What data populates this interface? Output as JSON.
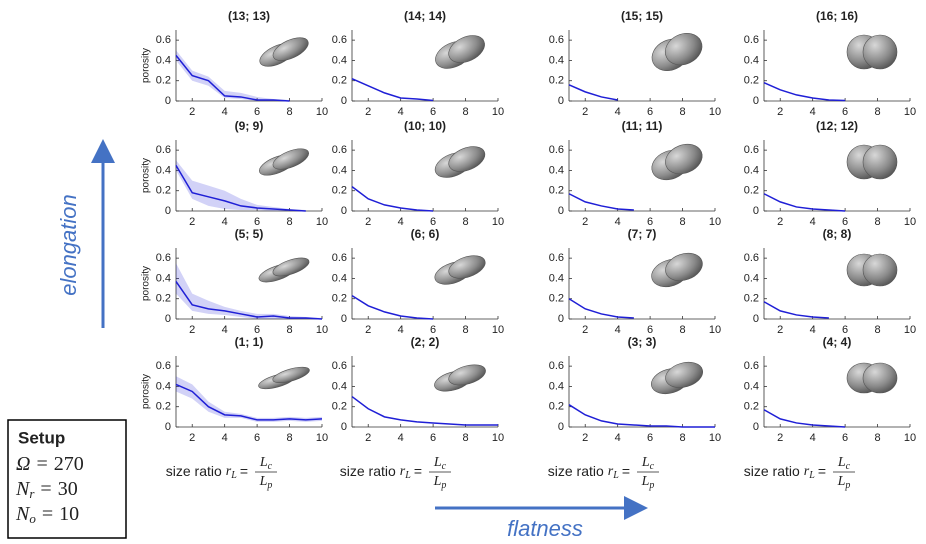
{
  "chart_data": [
    {
      "type": "line",
      "title": "(13; 13)",
      "ylabel": "porosity",
      "xlim": [
        1,
        10
      ],
      "ylim": [
        0,
        0.7
      ],
      "xticks": [
        2,
        4,
        6,
        8,
        10
      ],
      "yticks": [
        0,
        0.2,
        0.4,
        0.6
      ],
      "series": [
        {
          "color": "#1f1fd6",
          "x": [
            1,
            2,
            3,
            4,
            5,
            6,
            7,
            8
          ],
          "values": [
            0.45,
            0.25,
            0.2,
            0.05,
            0.04,
            0.01,
            0.01,
            0
          ],
          "band": {
            "lower": [
              0.4,
              0.2,
              0.15,
              0.03,
              0.02,
              0,
              0,
              0
            ],
            "upper": [
              0.5,
              0.3,
              0.24,
              0.1,
              0.08,
              0.04,
              0.02,
              0.01
            ]
          }
        }
      ]
    },
    {
      "type": "line",
      "title": "(14; 14)",
      "xlim": [
        1,
        10
      ],
      "ylim": [
        0,
        0.7
      ],
      "xticks": [
        2,
        4,
        6,
        8,
        10
      ],
      "yticks": [
        0,
        0.2,
        0.4,
        0.6
      ],
      "series": [
        {
          "color": "#1f1fd6",
          "x": [
            1,
            2,
            3,
            4,
            5,
            6
          ],
          "values": [
            0.22,
            0.15,
            0.08,
            0.03,
            0.02,
            0.005
          ]
        }
      ]
    },
    {
      "type": "line",
      "title": "(15; 15)",
      "xlim": [
        1,
        10
      ],
      "ylim": [
        0,
        0.7
      ],
      "xticks": [
        2,
        4,
        6,
        8,
        10
      ],
      "yticks": [
        0,
        0.2,
        0.4,
        0.6
      ],
      "series": [
        {
          "color": "#1f1fd6",
          "x": [
            1,
            2,
            3,
            4
          ],
          "values": [
            0.16,
            0.09,
            0.04,
            0.01
          ]
        }
      ]
    },
    {
      "type": "line",
      "title": "(16; 16)",
      "xlim": [
        1,
        10
      ],
      "ylim": [
        0,
        0.7
      ],
      "xticks": [
        2,
        4,
        6,
        8,
        10
      ],
      "yticks": [
        0,
        0.2,
        0.4,
        0.6
      ],
      "series": [
        {
          "color": "#1f1fd6",
          "x": [
            1,
            2,
            3,
            4,
            5,
            6
          ],
          "values": [
            0.18,
            0.11,
            0.06,
            0.03,
            0.01,
            0.005
          ]
        }
      ]
    },
    {
      "type": "line",
      "title": "(9; 9)",
      "ylabel": "porosity",
      "xlim": [
        1,
        10
      ],
      "ylim": [
        0,
        0.7
      ],
      "xticks": [
        2,
        4,
        6,
        8,
        10
      ],
      "yticks": [
        0,
        0.2,
        0.4,
        0.6
      ],
      "series": [
        {
          "color": "#1f1fd6",
          "x": [
            1,
            2,
            3,
            4,
            5,
            6,
            7,
            8,
            9
          ],
          "values": [
            0.45,
            0.18,
            0.14,
            0.1,
            0.05,
            0.03,
            0.02,
            0.01,
            0
          ],
          "band": {
            "lower": [
              0.4,
              0.12,
              0.05,
              0.02,
              0.01,
              0.01,
              0,
              0,
              0
            ],
            "upper": [
              0.5,
              0.3,
              0.25,
              0.2,
              0.12,
              0.06,
              0.04,
              0.02,
              0.01
            ]
          }
        }
      ]
    },
    {
      "type": "line",
      "title": "(10; 10)",
      "xlim": [
        1,
        10
      ],
      "ylim": [
        0,
        0.7
      ],
      "xticks": [
        2,
        4,
        6,
        8,
        10
      ],
      "yticks": [
        0,
        0.2,
        0.4,
        0.6
      ],
      "series": [
        {
          "color": "#1f1fd6",
          "x": [
            1,
            2,
            3,
            4,
            5,
            6
          ],
          "values": [
            0.24,
            0.12,
            0.06,
            0.03,
            0.01,
            0
          ]
        }
      ]
    },
    {
      "type": "line",
      "title": "(11; 11)",
      "xlim": [
        1,
        10
      ],
      "ylim": [
        0,
        0.7
      ],
      "xticks": [
        2,
        4,
        6,
        8,
        10
      ],
      "yticks": [
        0,
        0.2,
        0.4,
        0.6
      ],
      "series": [
        {
          "color": "#1f1fd6",
          "x": [
            1,
            2,
            3,
            4,
            5
          ],
          "values": [
            0.17,
            0.09,
            0.05,
            0.02,
            0.01
          ]
        }
      ]
    },
    {
      "type": "line",
      "title": "(12; 12)",
      "xlim": [
        1,
        10
      ],
      "ylim": [
        0,
        0.7
      ],
      "xticks": [
        2,
        4,
        6,
        8,
        10
      ],
      "yticks": [
        0,
        0.2,
        0.4,
        0.6
      ],
      "series": [
        {
          "color": "#1f1fd6",
          "x": [
            1,
            2,
            3,
            4,
            5,
            6
          ],
          "values": [
            0.17,
            0.09,
            0.04,
            0.02,
            0.01,
            0
          ]
        }
      ]
    },
    {
      "type": "line",
      "title": "(5; 5)",
      "ylabel": "porosity",
      "xlim": [
        1,
        10
      ],
      "ylim": [
        0,
        0.7
      ],
      "xticks": [
        2,
        4,
        6,
        8,
        10
      ],
      "yticks": [
        0,
        0.2,
        0.4,
        0.6
      ],
      "series": [
        {
          "color": "#1f1fd6",
          "x": [
            1,
            2,
            3,
            4,
            5,
            6,
            7,
            8,
            9,
            10
          ],
          "values": [
            0.37,
            0.14,
            0.1,
            0.08,
            0.05,
            0.02,
            0.03,
            0.01,
            0.01,
            0
          ],
          "band": {
            "lower": [
              0.25,
              0.08,
              0.05,
              0.04,
              0.02,
              0,
              0,
              0,
              0,
              0
            ],
            "upper": [
              0.55,
              0.25,
              0.18,
              0.12,
              0.08,
              0.05,
              0.05,
              0.03,
              0.02,
              0.01
            ]
          }
        }
      ]
    },
    {
      "type": "line",
      "title": "(6; 6)",
      "xlim": [
        1,
        10
      ],
      "ylim": [
        0,
        0.7
      ],
      "xticks": [
        2,
        4,
        6,
        8,
        10
      ],
      "yticks": [
        0,
        0.2,
        0.4,
        0.6
      ],
      "series": [
        {
          "color": "#1f1fd6",
          "x": [
            1,
            2,
            3,
            4,
            5,
            6
          ],
          "values": [
            0.23,
            0.13,
            0.07,
            0.03,
            0.01,
            0
          ]
        }
      ]
    },
    {
      "type": "line",
      "title": "(7; 7)",
      "xlim": [
        1,
        10
      ],
      "ylim": [
        0,
        0.7
      ],
      "xticks": [
        2,
        4,
        6,
        8,
        10
      ],
      "yticks": [
        0,
        0.2,
        0.4,
        0.6
      ],
      "series": [
        {
          "color": "#1f1fd6",
          "x": [
            1,
            2,
            3,
            4,
            5
          ],
          "values": [
            0.2,
            0.1,
            0.05,
            0.02,
            0.01
          ]
        }
      ]
    },
    {
      "type": "line",
      "title": "(8; 8)",
      "xlim": [
        1,
        10
      ],
      "ylim": [
        0,
        0.7
      ],
      "xticks": [
        2,
        4,
        6,
        8,
        10
      ],
      "yticks": [
        0,
        0.2,
        0.4,
        0.6
      ],
      "series": [
        {
          "color": "#1f1fd6",
          "x": [
            1,
            2,
            3,
            4,
            5
          ],
          "values": [
            0.17,
            0.08,
            0.04,
            0.02,
            0.01
          ]
        }
      ]
    },
    {
      "type": "line",
      "title": "(1; 1)",
      "ylabel": "porosity",
      "xlim": [
        1,
        10
      ],
      "ylim": [
        0,
        0.7
      ],
      "xticks": [
        2,
        4,
        6,
        8,
        10
      ],
      "yticks": [
        0,
        0.2,
        0.4,
        0.6
      ],
      "series": [
        {
          "color": "#1f1fd6",
          "x": [
            1,
            2,
            3,
            4,
            5,
            6,
            7,
            8,
            9,
            10
          ],
          "values": [
            0.42,
            0.35,
            0.2,
            0.12,
            0.11,
            0.07,
            0.07,
            0.08,
            0.07,
            0.08
          ],
          "band": {
            "lower": [
              0.35,
              0.28,
              0.15,
              0.09,
              0.09,
              0.05,
              0.05,
              0.06,
              0.05,
              0.06
            ],
            "upper": [
              0.5,
              0.42,
              0.25,
              0.15,
              0.13,
              0.09,
              0.09,
              0.1,
              0.09,
              0.1
            ]
          }
        }
      ]
    },
    {
      "type": "line",
      "title": "(2; 2)",
      "xlim": [
        1,
        10
      ],
      "ylim": [
        0,
        0.7
      ],
      "xticks": [
        2,
        4,
        6,
        8,
        10
      ],
      "yticks": [
        0,
        0.2,
        0.4,
        0.6
      ],
      "series": [
        {
          "color": "#1f1fd6",
          "x": [
            1,
            2,
            3,
            4,
            5,
            6,
            7,
            8,
            9,
            10
          ],
          "values": [
            0.3,
            0.18,
            0.1,
            0.07,
            0.05,
            0.04,
            0.03,
            0.02,
            0.02,
            0.02
          ]
        }
      ]
    },
    {
      "type": "line",
      "title": "(3; 3)",
      "xlim": [
        1,
        10
      ],
      "ylim": [
        0,
        0.7
      ],
      "xticks": [
        2,
        4,
        6,
        8,
        10
      ],
      "yticks": [
        0,
        0.2,
        0.4,
        0.6
      ],
      "series": [
        {
          "color": "#1f1fd6",
          "x": [
            1,
            2,
            3,
            4,
            5,
            6,
            7,
            8,
            9,
            10
          ],
          "values": [
            0.22,
            0.12,
            0.06,
            0.03,
            0.02,
            0.01,
            0.01,
            0,
            0,
            0
          ]
        }
      ]
    },
    {
      "type": "line",
      "title": "(4; 4)",
      "xlim": [
        1,
        10
      ],
      "ylim": [
        0,
        0.7
      ],
      "xticks": [
        2,
        4,
        6,
        8,
        10
      ],
      "yticks": [
        0,
        0.2,
        0.4,
        0.6
      ],
      "series": [
        {
          "color": "#1f1fd6",
          "x": [
            1,
            2,
            3,
            4,
            5,
            6
          ],
          "values": [
            0.17,
            0.08,
            0.04,
            0.02,
            0.01,
            0
          ]
        }
      ]
    }
  ],
  "xlabel": {
    "text": "size ratio",
    "var": "r",
    "var_sub": "L",
    "eq": "=",
    "num": "L",
    "num_sub": "c",
    "den": "L",
    "den_sub": "p"
  },
  "arrows": {
    "vertical": "elongation",
    "horizontal": "flatness"
  },
  "setup": {
    "title": "Setup",
    "lines": [
      {
        "sym": "Ω",
        "eq": "=",
        "value": 270
      },
      {
        "sym": "N",
        "sub": "r",
        "eq": "=",
        "value": 30
      },
      {
        "sym": "N",
        "sub": "o",
        "eq": "=",
        "value": 10
      }
    ]
  }
}
